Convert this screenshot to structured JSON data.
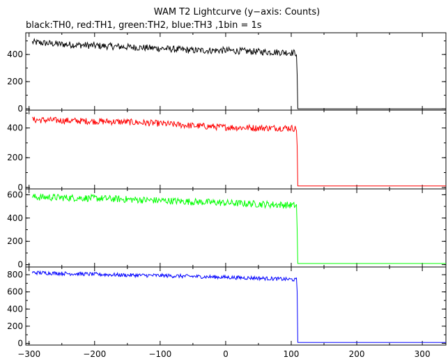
{
  "chart_data": {
    "type": "line",
    "title": "WAM T2 Lightcurve (y−axis: Counts)",
    "subtitle": "black:TH0, red:TH1, green:TH2, blue:TH3 ,1bin = 1s",
    "xlabel": "",
    "ylabel": "",
    "xlim": [
      -305,
      336
    ],
    "x_ticks": [
      "−300",
      "−200",
      "−100",
      "0",
      "100",
      "200",
      "300"
    ],
    "x_tick_values": [
      -300,
      -200,
      -100,
      0,
      100,
      200,
      300
    ],
    "grid": false,
    "bin_seconds": 1,
    "drop_time": 110,
    "panels": [
      {
        "name": "TH0",
        "color": "#000000",
        "ylim": [
          -10,
          560
        ],
        "y_ticks": [
          "0",
          "200",
          "400"
        ],
        "y_tick_values": [
          0,
          200,
          400
        ],
        "x": [
          -295,
          -250,
          -200,
          -150,
          -100,
          -50,
          0,
          50,
          100,
          108,
          109,
          110,
          200,
          336
        ],
        "values": [
          490,
          475,
          465,
          455,
          445,
          430,
          430,
          420,
          415,
          410,
          250,
          0,
          0,
          0
        ],
        "noise_amplitude": 25
      },
      {
        "name": "TH1",
        "color": "#ff0000",
        "ylim": [
          -10,
          520
        ],
        "y_ticks": [
          "0",
          "200",
          "400"
        ],
        "y_tick_values": [
          0,
          200,
          400
        ],
        "x": [
          -295,
          -250,
          -200,
          -150,
          -100,
          -50,
          0,
          50,
          100,
          108,
          109,
          110,
          200,
          336
        ],
        "values": [
          455,
          450,
          445,
          440,
          430,
          415,
          405,
          400,
          400,
          395,
          280,
          10,
          10,
          10
        ],
        "noise_amplitude": 22
      },
      {
        "name": "TH2",
        "color": "#00ff00",
        "ylim": [
          -20,
          650
        ],
        "y_ticks": [
          "0",
          "200",
          "400",
          "600"
        ],
        "y_tick_values": [
          0,
          200,
          400,
          600
        ],
        "x": [
          -295,
          -250,
          -200,
          -150,
          -100,
          -50,
          0,
          50,
          100,
          108,
          109,
          110,
          200,
          336
        ],
        "values": [
          580,
          575,
          570,
          560,
          550,
          540,
          530,
          520,
          510,
          505,
          300,
          10,
          10,
          10
        ],
        "noise_amplitude": 30
      },
      {
        "name": "TH3",
        "color": "#0000ff",
        "ylim": [
          -20,
          890
        ],
        "y_ticks": [
          "0",
          "200",
          "400",
          "600",
          "800"
        ],
        "y_tick_values": [
          0,
          200,
          400,
          600,
          800
        ],
        "x": [
          -295,
          -250,
          -200,
          -150,
          -100,
          -50,
          0,
          50,
          100,
          108,
          109,
          110,
          200,
          336
        ],
        "values": [
          825,
          815,
          805,
          795,
          790,
          780,
          770,
          760,
          745,
          740,
          600,
          10,
          10,
          10
        ],
        "noise_amplitude": 22
      }
    ]
  }
}
